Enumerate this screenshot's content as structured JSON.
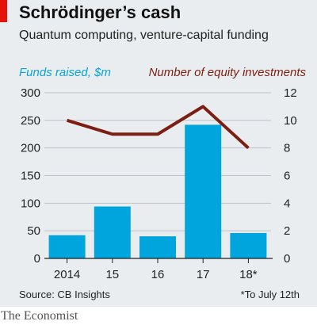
{
  "header": {
    "title": "Schrödinger’s cash",
    "subtitle": "Quantum computing, venture-capital funding"
  },
  "footer": {
    "source": "Source: CB Insights",
    "footnote": "*To July 12th",
    "brand": "The Economist"
  },
  "colors": {
    "bars": "#00a5de",
    "line": "#7d1e12",
    "panel": "#e9edf0",
    "accent": "#e3120b"
  },
  "chart_data": {
    "type": "bar",
    "categories": [
      "2014",
      "15",
      "16",
      "17",
      "18*"
    ],
    "series": [
      {
        "name": "Funds raised, $m",
        "type": "bar",
        "axis": "left",
        "values": [
          42,
          94,
          40,
          242,
          46
        ]
      },
      {
        "name": "Number of equity investments",
        "type": "line",
        "axis": "right",
        "values": [
          10,
          9,
          9,
          11,
          8
        ]
      }
    ],
    "left_axis": {
      "ylim": [
        0,
        300
      ],
      "ticks": [
        "0",
        "50",
        "100",
        "150",
        "200",
        "250",
        "300"
      ]
    },
    "right_axis": {
      "ylim": [
        0,
        12
      ],
      "ticks": [
        "0",
        "2",
        "4",
        "6",
        "8",
        "10",
        "12"
      ]
    },
    "grid": true
  }
}
